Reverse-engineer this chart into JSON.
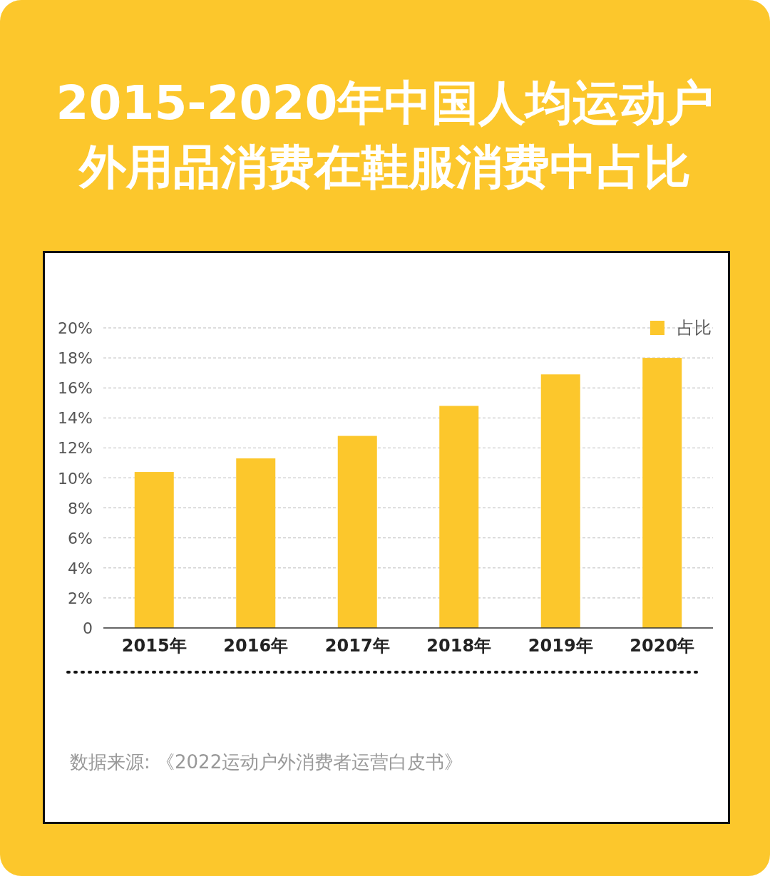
{
  "chart_data": {
    "type": "bar",
    "title": "2015-2020年中国人均运动户外用品消费在鞋服消费中占比",
    "categories": [
      "2015年",
      "2016年",
      "2017年",
      "2018年",
      "2019年",
      "2020年"
    ],
    "series": [
      {
        "name": "占比",
        "color": "#fcc72c",
        "values": [
          10.4,
          11.3,
          12.8,
          14.8,
          16.9,
          18.0
        ]
      }
    ],
    "ylim": [
      0,
      20
    ],
    "yticks": [
      {
        "value": 0,
        "label": "0"
      },
      {
        "value": 2,
        "label": "2%"
      },
      {
        "value": 4,
        "label": "4%"
      },
      {
        "value": 6,
        "label": "6%"
      },
      {
        "value": 8,
        "label": "8%"
      },
      {
        "value": 10,
        "label": "10%"
      },
      {
        "value": 12,
        "label": "12%"
      },
      {
        "value": 14,
        "label": "14%"
      },
      {
        "value": 16,
        "label": "16%"
      },
      {
        "value": 18,
        "label": "18%"
      },
      {
        "value": 20,
        "label": "20%"
      }
    ],
    "grid": "y",
    "legend": "top right",
    "annotations": [
      "数据来源: 《2022运动户外消费者运营白皮书》"
    ]
  }
}
